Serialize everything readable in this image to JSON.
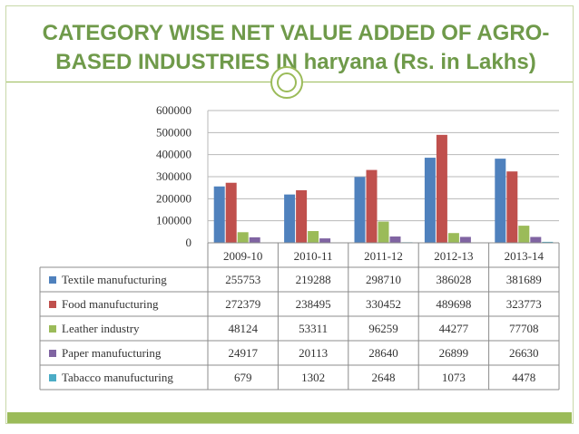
{
  "title": {
    "line1": "CATEGORY WISE NET VALUE ADDED OF AGRO-",
    "line2": "BASED INDUSTRIES IN haryana  (Rs. in Lakhs)"
  },
  "colors": {
    "accent": "#9bbb59",
    "title": "#6f9a4a"
  },
  "chart_data": {
    "type": "bar",
    "title": "CATEGORY WISE NET VALUE ADDED OF AGRO-BASED INDUSTRIES IN haryana  (Rs. in Lakhs)",
    "xlabel": "",
    "ylabel": "",
    "ylim": [
      0,
      600000
    ],
    "yticks": [
      0,
      100000,
      200000,
      300000,
      400000,
      500000,
      600000
    ],
    "grid": true,
    "legend": "data-table",
    "categories": [
      "2009-10",
      "2010-11",
      "2011-12",
      "2012-13",
      "2013-14"
    ],
    "series": [
      {
        "name": "Textile manufucturing",
        "color": "#4f81bd",
        "values": [
          255753,
          219288,
          298710,
          386028,
          381689
        ]
      },
      {
        "name": "Food manufucturing",
        "color": "#c0504d",
        "values": [
          272379,
          238495,
          330452,
          489698,
          323773
        ]
      },
      {
        "name": "Leather industry",
        "color": "#9bbb59",
        "values": [
          48124,
          53311,
          96259,
          44277,
          77708
        ]
      },
      {
        "name": "Paper manufucturing",
        "color": "#8064a2",
        "values": [
          24917,
          20113,
          28640,
          26899,
          26630
        ]
      },
      {
        "name": "Tabacco manufucturing",
        "color": "#4bacc6",
        "values": [
          679,
          1302,
          2648,
          1073,
          4478
        ]
      }
    ]
  }
}
